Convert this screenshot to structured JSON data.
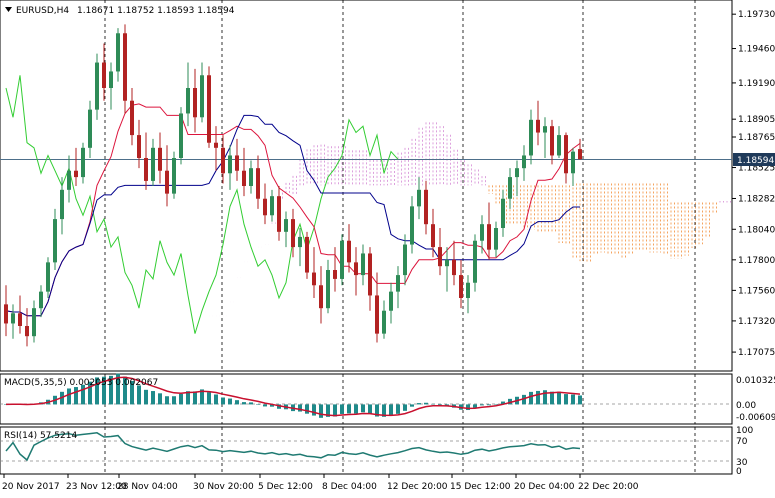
{
  "header": {
    "symbol": "EURUSD,H4",
    "ohlc": "1.18671 1.18752 1.18593 1.18594"
  },
  "current_price": "1.18594",
  "colors": {
    "bull": "#2e8b57",
    "bear": "#b22222",
    "tenkan": "#dc143c",
    "kijun": "#00008b",
    "chikou": "#32cd32",
    "cloud": "#f4a460",
    "cloud_alt": "#dda0dd",
    "macd_hist": "#1f8a8a",
    "macd_signal": "#c8102e",
    "rsi": "#1f7a72",
    "grid": "#000000"
  },
  "price_axis": [
    "1.19730",
    "1.19460",
    "1.19190",
    "1.18905",
    "1.18765",
    "1.18525",
    "1.18282",
    "1.18040",
    "1.17800",
    "1.17560",
    "1.17320",
    "1.17075"
  ],
  "time_axis": [
    "20 Nov 2017",
    "23 Nov 12:00",
    "28 Nov 04:00",
    "30 Nov 20:00",
    "5 Dec 12:00",
    "8 Dec 04:00",
    "12 Dec 20:00",
    "15 Dec 12:00",
    "20 Dec 04:00",
    "22 Dec 20:00"
  ],
  "macd": {
    "label": "MACD(5,35,5) 0.002053 0.002067",
    "axis": [
      "0.010325",
      "0.00",
      "-0.006096"
    ]
  },
  "rsi": {
    "label": "RSI(14) 57.5214",
    "axis": [
      "100",
      "70",
      "30",
      "0"
    ]
  },
  "chart_data": {
    "type": "candlestick",
    "title": "EURUSD,H4",
    "ylim": [
      1.1695,
      1.1981
    ],
    "candles": [
      {
        "o": 1.1745,
        "h": 1.176,
        "l": 1.172,
        "c": 1.173
      },
      {
        "o": 1.173,
        "h": 1.1745,
        "l": 1.1718,
        "c": 1.1738
      },
      {
        "o": 1.1738,
        "h": 1.1752,
        "l": 1.1722,
        "c": 1.1728
      },
      {
        "o": 1.1728,
        "h": 1.1742,
        "l": 1.1712,
        "c": 1.172
      },
      {
        "o": 1.172,
        "h": 1.1748,
        "l": 1.1715,
        "c": 1.1742
      },
      {
        "o": 1.1742,
        "h": 1.176,
        "l": 1.1735,
        "c": 1.1755
      },
      {
        "o": 1.1755,
        "h": 1.1782,
        "l": 1.175,
        "c": 1.1778
      },
      {
        "o": 1.1778,
        "h": 1.182,
        "l": 1.1772,
        "c": 1.1812
      },
      {
        "o": 1.1812,
        "h": 1.1845,
        "l": 1.18,
        "c": 1.1835
      },
      {
        "o": 1.1835,
        "h": 1.1862,
        "l": 1.1825,
        "c": 1.185
      },
      {
        "o": 1.185,
        "h": 1.1868,
        "l": 1.1838,
        "c": 1.1845
      },
      {
        "o": 1.1845,
        "h": 1.1872,
        "l": 1.184,
        "c": 1.1868
      },
      {
        "o": 1.1868,
        "h": 1.1905,
        "l": 1.186,
        "c": 1.1898
      },
      {
        "o": 1.1898,
        "h": 1.1942,
        "l": 1.189,
        "c": 1.1935
      },
      {
        "o": 1.1935,
        "h": 1.195,
        "l": 1.1905,
        "c": 1.1915
      },
      {
        "o": 1.1915,
        "h": 1.1935,
        "l": 1.1898,
        "c": 1.1928
      },
      {
        "o": 1.1928,
        "h": 1.1962,
        "l": 1.192,
        "c": 1.1958
      },
      {
        "o": 1.1958,
        "h": 1.1965,
        "l": 1.1895,
        "c": 1.1905
      },
      {
        "o": 1.1905,
        "h": 1.1915,
        "l": 1.187,
        "c": 1.1878
      },
      {
        "o": 1.1878,
        "h": 1.189,
        "l": 1.1852,
        "c": 1.186
      },
      {
        "o": 1.186,
        "h": 1.188,
        "l": 1.1835,
        "c": 1.1842
      },
      {
        "o": 1.1842,
        "h": 1.1875,
        "l": 1.1838,
        "c": 1.1868
      },
      {
        "o": 1.1868,
        "h": 1.188,
        "l": 1.184,
        "c": 1.185
      },
      {
        "o": 1.185,
        "h": 1.187,
        "l": 1.1822,
        "c": 1.1832
      },
      {
        "o": 1.1832,
        "h": 1.1865,
        "l": 1.1828,
        "c": 1.186
      },
      {
        "o": 1.186,
        "h": 1.19,
        "l": 1.1855,
        "c": 1.1895
      },
      {
        "o": 1.1895,
        "h": 1.1935,
        "l": 1.1885,
        "c": 1.1915
      },
      {
        "o": 1.1915,
        "h": 1.193,
        "l": 1.188,
        "c": 1.1892
      },
      {
        "o": 1.1892,
        "h": 1.1935,
        "l": 1.1888,
        "c": 1.1925
      },
      {
        "o": 1.1925,
        "h": 1.1932,
        "l": 1.1868,
        "c": 1.1872
      },
      {
        "o": 1.1872,
        "h": 1.1885,
        "l": 1.185,
        "c": 1.1868
      },
      {
        "o": 1.1868,
        "h": 1.1878,
        "l": 1.184,
        "c": 1.1848
      },
      {
        "o": 1.1848,
        "h": 1.187,
        "l": 1.1835,
        "c": 1.1862
      },
      {
        "o": 1.1862,
        "h": 1.1875,
        "l": 1.1842,
        "c": 1.185
      },
      {
        "o": 1.185,
        "h": 1.1868,
        "l": 1.183,
        "c": 1.1838
      },
      {
        "o": 1.1838,
        "h": 1.1858,
        "l": 1.1832,
        "c": 1.1852
      },
      {
        "o": 1.1852,
        "h": 1.1862,
        "l": 1.182,
        "c": 1.1828
      },
      {
        "o": 1.1828,
        "h": 1.184,
        "l": 1.1808,
        "c": 1.1815
      },
      {
        "o": 1.1815,
        "h": 1.1835,
        "l": 1.181,
        "c": 1.183
      },
      {
        "o": 1.183,
        "h": 1.1838,
        "l": 1.1795,
        "c": 1.1802
      },
      {
        "o": 1.1802,
        "h": 1.1818,
        "l": 1.179,
        "c": 1.1812
      },
      {
        "o": 1.1812,
        "h": 1.182,
        "l": 1.1782,
        "c": 1.179
      },
      {
        "o": 1.179,
        "h": 1.1805,
        "l": 1.1775,
        "c": 1.1798
      },
      {
        "o": 1.1798,
        "h": 1.1802,
        "l": 1.1765,
        "c": 1.177
      },
      {
        "o": 1.177,
        "h": 1.179,
        "l": 1.175,
        "c": 1.176
      },
      {
        "o": 1.176,
        "h": 1.1775,
        "l": 1.173,
        "c": 1.1742
      },
      {
        "o": 1.1742,
        "h": 1.178,
        "l": 1.1738,
        "c": 1.1772
      },
      {
        "o": 1.1772,
        "h": 1.179,
        "l": 1.1755,
        "c": 1.1765
      },
      {
        "o": 1.1765,
        "h": 1.18,
        "l": 1.176,
        "c": 1.1795
      },
      {
        "o": 1.1795,
        "h": 1.1808,
        "l": 1.177,
        "c": 1.1778
      },
      {
        "o": 1.1778,
        "h": 1.179,
        "l": 1.1752,
        "c": 1.1768
      },
      {
        "o": 1.1768,
        "h": 1.1792,
        "l": 1.176,
        "c": 1.1785
      },
      {
        "o": 1.1785,
        "h": 1.179,
        "l": 1.174,
        "c": 1.1752
      },
      {
        "o": 1.1752,
        "h": 1.177,
        "l": 1.1715,
        "c": 1.1722
      },
      {
        "o": 1.1722,
        "h": 1.1748,
        "l": 1.1718,
        "c": 1.174
      },
      {
        "o": 1.174,
        "h": 1.1762,
        "l": 1.173,
        "c": 1.1755
      },
      {
        "o": 1.1755,
        "h": 1.1775,
        "l": 1.1742,
        "c": 1.1768
      },
      {
        "o": 1.1768,
        "h": 1.18,
        "l": 1.176,
        "c": 1.1792
      },
      {
        "o": 1.1792,
        "h": 1.183,
        "l": 1.1785,
        "c": 1.1822
      },
      {
        "o": 1.1822,
        "h": 1.1845,
        "l": 1.1812,
        "c": 1.1835
      },
      {
        "o": 1.1835,
        "h": 1.1842,
        "l": 1.18,
        "c": 1.1808
      },
      {
        "o": 1.1808,
        "h": 1.182,
        "l": 1.1782,
        "c": 1.179
      },
      {
        "o": 1.179,
        "h": 1.1805,
        "l": 1.1768,
        "c": 1.1775
      },
      {
        "o": 1.1775,
        "h": 1.179,
        "l": 1.1755,
        "c": 1.178
      },
      {
        "o": 1.178,
        "h": 1.1795,
        "l": 1.176,
        "c": 1.1768
      },
      {
        "o": 1.1768,
        "h": 1.178,
        "l": 1.1742,
        "c": 1.175
      },
      {
        "o": 1.175,
        "h": 1.1768,
        "l": 1.1738,
        "c": 1.1762
      },
      {
        "o": 1.1762,
        "h": 1.18,
        "l": 1.1755,
        "c": 1.1795
      },
      {
        "o": 1.1795,
        "h": 1.1815,
        "l": 1.1785,
        "c": 1.1808
      },
      {
        "o": 1.1808,
        "h": 1.1825,
        "l": 1.178,
        "c": 1.1788
      },
      {
        "o": 1.1788,
        "h": 1.181,
        "l": 1.1782,
        "c": 1.1805
      },
      {
        "o": 1.1805,
        "h": 1.1835,
        "l": 1.1798,
        "c": 1.1828
      },
      {
        "o": 1.1828,
        "h": 1.1852,
        "l": 1.182,
        "c": 1.1845
      },
      {
        "o": 1.1845,
        "h": 1.1858,
        "l": 1.183,
        "c": 1.1852
      },
      {
        "o": 1.1852,
        "h": 1.187,
        "l": 1.1842,
        "c": 1.1862
      },
      {
        "o": 1.1862,
        "h": 1.1898,
        "l": 1.1855,
        "c": 1.189
      },
      {
        "o": 1.189,
        "h": 1.1905,
        "l": 1.187,
        "c": 1.188
      },
      {
        "o": 1.188,
        "h": 1.1892,
        "l": 1.186,
        "c": 1.1885
      },
      {
        "o": 1.1885,
        "h": 1.189,
        "l": 1.1855,
        "c": 1.1862
      },
      {
        "o": 1.1862,
        "h": 1.1885,
        "l": 1.186,
        "c": 1.1878
      },
      {
        "o": 1.1878,
        "h": 1.188,
        "l": 1.184,
        "c": 1.1848
      },
      {
        "o": 1.1848,
        "h": 1.1868,
        "l": 1.1838,
        "c": 1.1865
      },
      {
        "o": 1.1867,
        "h": 1.1875,
        "l": 1.1859,
        "c": 1.1859
      }
    ]
  }
}
